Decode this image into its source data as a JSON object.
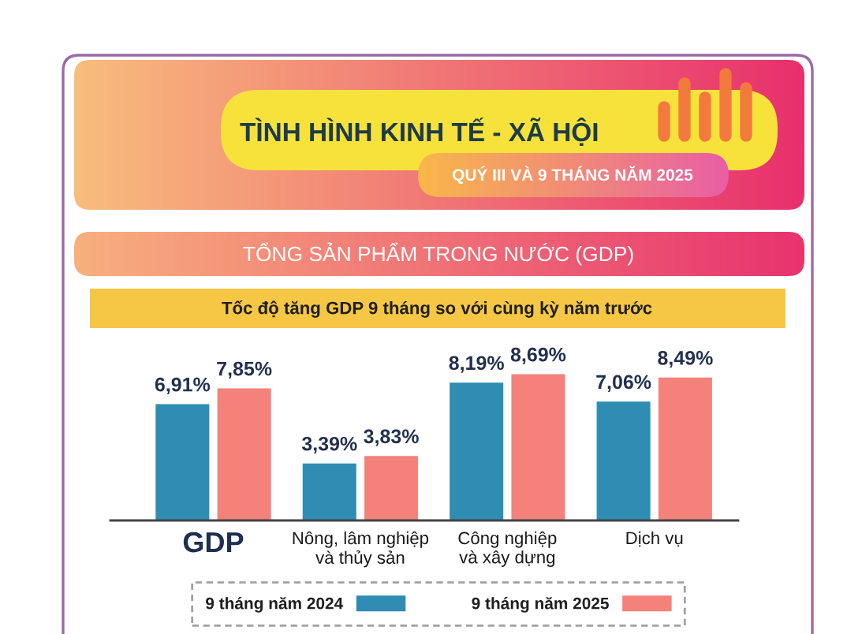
{
  "chart_data": {
    "type": "bar",
    "title": "TÌNH HÌNH KINH TẾ - XÃ HỘI",
    "subtitle": "QUÝ III VÀ 9 THÁNG NĂM 2025",
    "annotations": [
      "TỔNG SẢN PHẨM TRONG NƯỚC (GDP)",
      "Tốc độ tăng GDP 9 tháng so với cùng kỳ năm trước"
    ],
    "categories": [
      "GDP",
      "Nông, lâm nghiệp\nvà thủy sản",
      "Công nghiệp\nvà xây dựng",
      "Dịch vụ"
    ],
    "series": [
      {
        "name": "9 tháng năm 2024",
        "color": "#2f8db4",
        "values": [
          6.91,
          3.39,
          8.19,
          7.06
        ],
        "value_labels": [
          "6,91%",
          "3,39%",
          "8,19%",
          "7,06%"
        ]
      },
      {
        "name": "9 tháng năm 2025",
        "color": "#f4827a",
        "values": [
          7.85,
          3.83,
          8.69,
          8.49
        ],
        "value_labels": [
          "7,85%",
          "3,83%",
          "8,69%",
          "8,49%"
        ]
      }
    ],
    "legend": "bottom",
    "tick_labels": "x"
  }
}
